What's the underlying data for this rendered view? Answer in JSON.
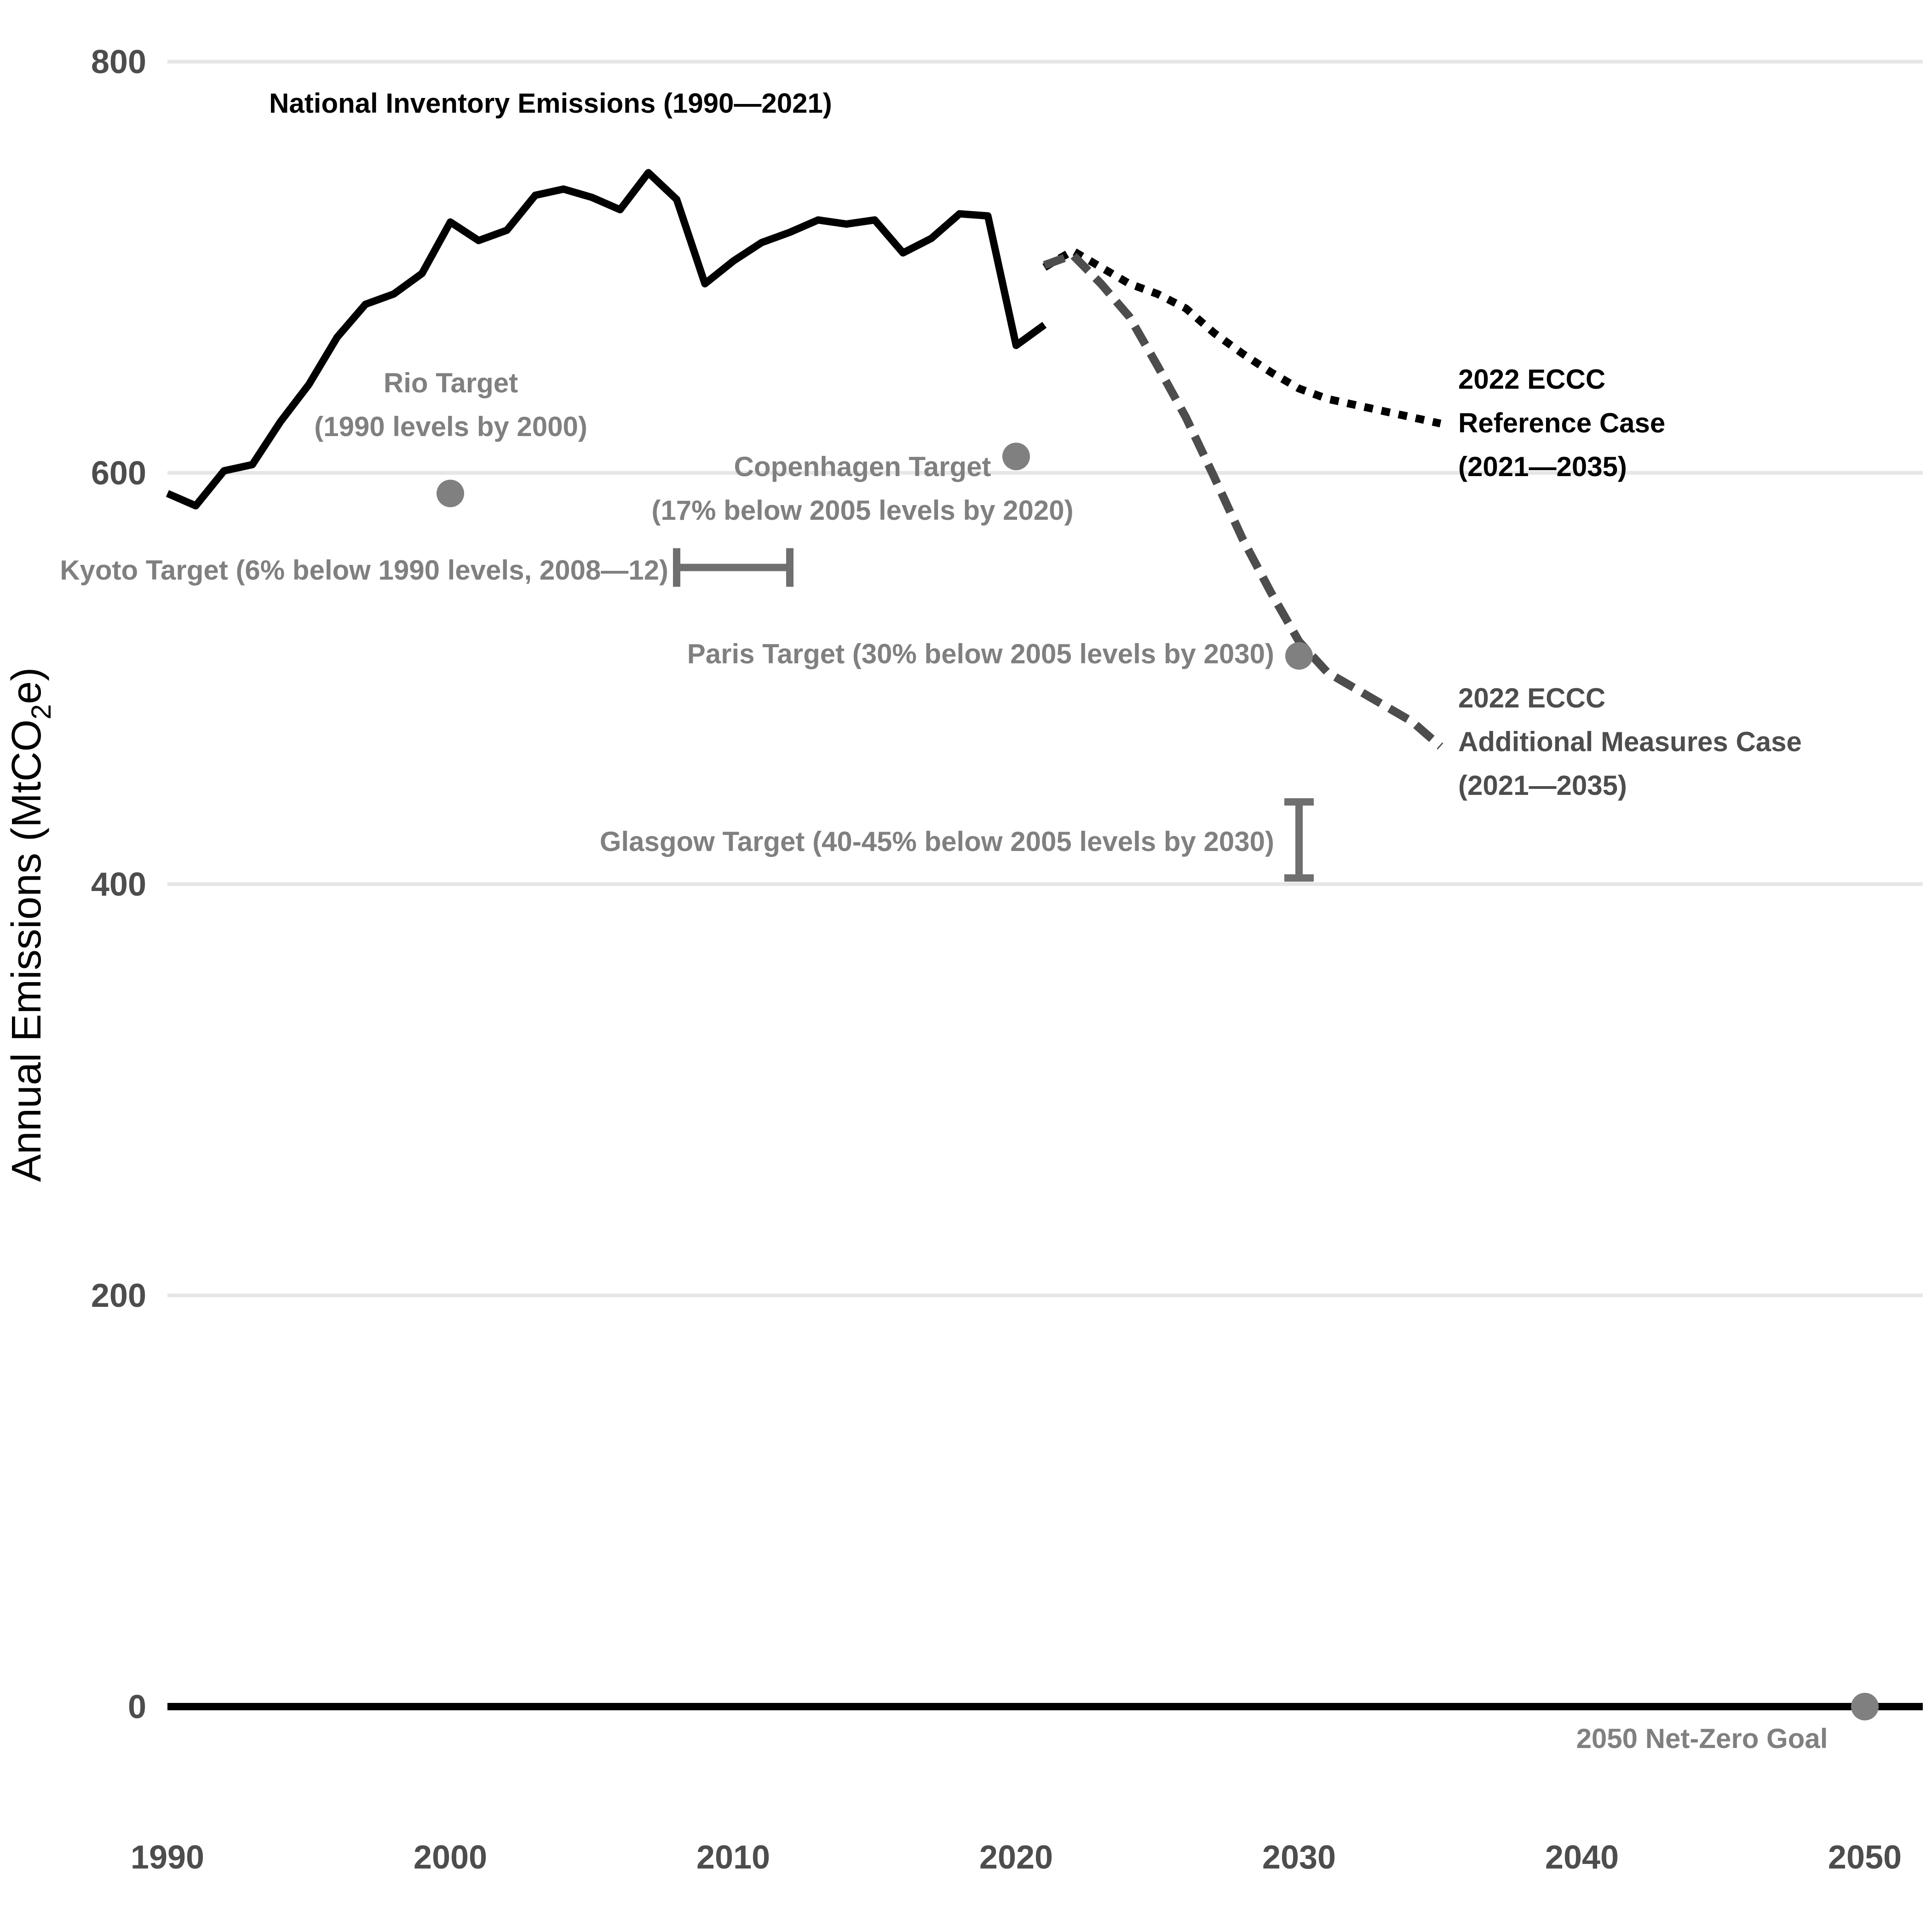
{
  "chart_data": {
    "type": "line",
    "title": "",
    "xlabel": "",
    "ylabel": "Annual Emissions (MtCO2e)",
    "ylabel_parts": {
      "pre": "Annual Emissions (MtCO",
      "sub": "2",
      "post": "e)"
    },
    "xlim": [
      1990,
      2052
    ],
    "ylim": [
      0,
      800
    ],
    "x_ticks": [
      1990,
      2000,
      2010,
      2020,
      2030,
      2040,
      2050
    ],
    "y_ticks": [
      0,
      200,
      400,
      600,
      800
    ],
    "grid": "horizontal",
    "series": [
      {
        "name": "National Inventory Emissions (1990—2021)",
        "style": "solid",
        "color": "#000000",
        "x": [
          1990,
          1991,
          1992,
          1993,
          1994,
          1995,
          1996,
          1997,
          1998,
          1999,
          2000,
          2001,
          2002,
          2003,
          2004,
          2005,
          2006,
          2007,
          2008,
          2009,
          2010,
          2011,
          2012,
          2013,
          2014,
          2015,
          2016,
          2017,
          2018,
          2019,
          2020,
          2021
        ],
        "values": [
          590,
          584,
          601,
          604,
          625,
          643,
          666,
          682,
          687,
          697,
          722,
          713,
          718,
          735,
          738,
          734,
          728,
          746,
          733,
          692,
          703,
          712,
          717,
          723,
          721,
          723,
          707,
          714,
          726,
          725,
          662,
          672
        ]
      },
      {
        "name": "2022 ECCC Reference Case (2021—2035)",
        "label_lines": [
          "2022 ECCC",
          "Reference Case",
          "(2021—2035)"
        ],
        "style": "dotted",
        "color": "#000000",
        "x": [
          2021,
          2022,
          2023,
          2024,
          2025,
          2026,
          2027,
          2028,
          2029,
          2030,
          2031,
          2032,
          2033,
          2034,
          2035
        ],
        "values": [
          700,
          708,
          700,
          692,
          687,
          680,
          668,
          658,
          649,
          641,
          636,
          633,
          630,
          627,
          624
        ]
      },
      {
        "name": "2022 ECCC Additional Measures Case (2021—2035)",
        "label_lines": [
          "2022 ECCC",
          "Additional Measures Case",
          "(2021—2035)"
        ],
        "style": "dashed",
        "color": "#4d4d4d",
        "x": [
          2021,
          2022,
          2023,
          2024,
          2025,
          2026,
          2027,
          2028,
          2029,
          2030,
          2031,
          2032,
          2033,
          2034,
          2035
        ],
        "values": [
          701,
          706,
          692,
          676,
          652,
          627,
          598,
          568,
          542,
          518,
          503,
          495,
          487,
          479,
          467
        ]
      }
    ],
    "targets": [
      {
        "label_lines": [
          "Rio Target",
          "(1990 levels by 2000)"
        ],
        "kind": "point",
        "x": 2000,
        "y": 590,
        "color": "#808080"
      },
      {
        "label_lines": [
          "Copenhagen Target",
          "(17% below 2005 levels by 2020)"
        ],
        "kind": "point",
        "x": 2020,
        "y": 608,
        "color": "#808080"
      },
      {
        "label_lines": [
          "Kyoto Target (6% below 1990 levels, 2008—12)"
        ],
        "kind": "range_x",
        "x_range": [
          2008,
          2012
        ],
        "y": 554,
        "color": "#6f6f6f"
      },
      {
        "label_lines": [
          "Paris Target (30% below 2005 levels by 2030)"
        ],
        "kind": "point",
        "x": 2030,
        "y": 511,
        "color": "#808080"
      },
      {
        "label_lines": [
          "Glasgow Target (40-45% below 2005 levels by 2030)"
        ],
        "kind": "range_y",
        "x": 2030,
        "y_range": [
          403,
          440
        ],
        "color": "#6f6f6f"
      },
      {
        "label_lines": [
          "2050 Net-Zero Goal"
        ],
        "kind": "point",
        "x": 2050,
        "y": 0,
        "color": "#808080"
      }
    ]
  }
}
